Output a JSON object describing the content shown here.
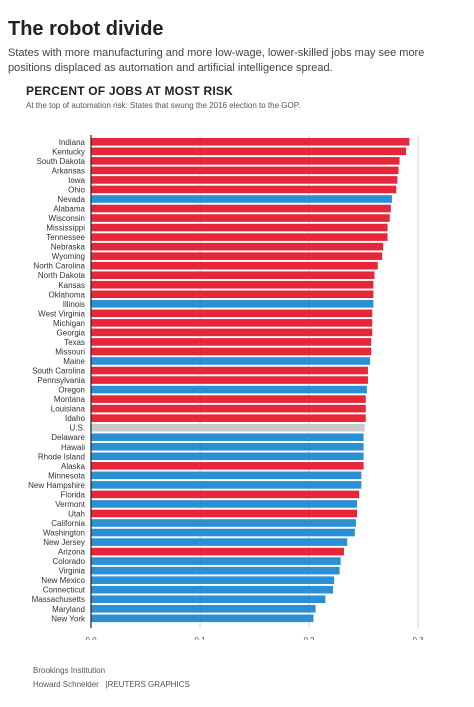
{
  "header": {
    "title": "The robot divide",
    "subtitle": "States with more manufacturing and more low-wage, lower-skilled jobs may see more positions displaced as automation and artificial intelligence spread."
  },
  "chart_data": {
    "type": "bar",
    "orientation": "horizontal",
    "title": "PERCENT OF JOBS AT MOST RISK",
    "subtitle": "At the top of automation risk: States that swung the 2016 election to the GOP.",
    "xlim": [
      0,
      0.31
    ],
    "x_ticks": [
      0.0,
      0.1,
      0.2,
      0.3
    ],
    "x_tick_labels": [
      "0.0",
      "0.1",
      "0.2",
      "0.3"
    ],
    "grid": true,
    "colors": {
      "red": "#e6273a",
      "blue": "#2b8fd4",
      "us": "#c8c8c8"
    },
    "categories": [
      "Indiana",
      "Kentucky",
      "South Dakota",
      "Arkansas",
      "Iowa",
      "Ohio",
      "Nevada",
      "Alabama",
      "Wisconsin",
      "Mississippi",
      "Tennessee",
      "Nebraska",
      "Wyoming",
      "North Carolina",
      "North Dakota",
      "Kansas",
      "Oklahoma",
      "Illinois",
      "West Virginia",
      "Michigan",
      "Georgia",
      "Texas",
      "Missouri",
      "Maine",
      "South Carolina",
      "Pennsylvania",
      "Oregon",
      "Montana",
      "Louisiana",
      "Idaho",
      "U.S.",
      "Delaware",
      "Hawaii",
      "Rhode Island",
      "Alaska",
      "Minnesota",
      "New Hampshire",
      "Florida",
      "Vermont",
      "Utah",
      "California",
      "Washington",
      "New Jersey",
      "Arizona",
      "Colorado",
      "Virginia",
      "New Mexico",
      "Connecticut",
      "Massachusetts",
      "Maryland",
      "New York"
    ],
    "values": [
      0.292,
      0.289,
      0.283,
      0.282,
      0.281,
      0.28,
      0.276,
      0.275,
      0.274,
      0.272,
      0.272,
      0.268,
      0.267,
      0.263,
      0.26,
      0.259,
      0.259,
      0.259,
      0.258,
      0.258,
      0.258,
      0.257,
      0.257,
      0.256,
      0.254,
      0.254,
      0.253,
      0.252,
      0.252,
      0.252,
      0.251,
      0.25,
      0.25,
      0.25,
      0.25,
      0.248,
      0.248,
      0.246,
      0.244,
      0.244,
      0.243,
      0.242,
      0.235,
      0.232,
      0.229,
      0.228,
      0.223,
      0.222,
      0.215,
      0.206,
      0.204
    ],
    "bar_colors": [
      "red",
      "red",
      "red",
      "red",
      "red",
      "red",
      "blue",
      "red",
      "red",
      "red",
      "red",
      "red",
      "red",
      "red",
      "red",
      "red",
      "red",
      "blue",
      "red",
      "red",
      "red",
      "red",
      "red",
      "blue",
      "red",
      "red",
      "blue",
      "red",
      "red",
      "red",
      "us",
      "blue",
      "blue",
      "blue",
      "red",
      "blue",
      "blue",
      "red",
      "blue",
      "red",
      "blue",
      "blue",
      "blue",
      "red",
      "blue",
      "blue",
      "blue",
      "blue",
      "blue",
      "blue",
      "blue"
    ]
  },
  "footer": {
    "source": "Brookings Institution",
    "author": "Howard Schneider",
    "separator": "|",
    "org": "REUTERS GRAPHICS"
  }
}
